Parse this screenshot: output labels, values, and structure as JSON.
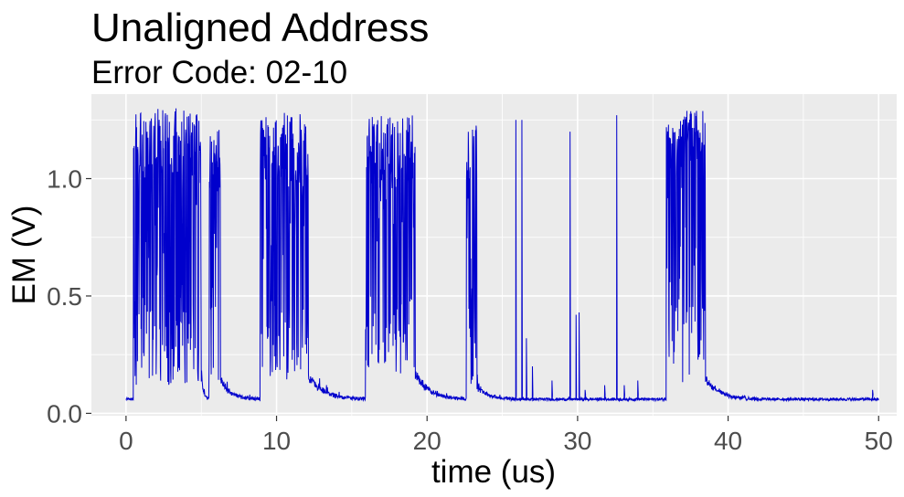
{
  "chart_data": {
    "type": "line",
    "title": "Unaligned Address",
    "subtitle": "Error Code: 02-10",
    "xlabel": "time (us)",
    "ylabel": "EM (V)",
    "xlim": [
      -2.3,
      51.2
    ],
    "ylim": [
      -0.01,
      1.36
    ],
    "x_ticks": [
      0,
      10,
      20,
      30,
      40,
      50
    ],
    "x_tick_labels": [
      "0",
      "10",
      "20",
      "30",
      "40",
      "50"
    ],
    "y_ticks": [
      0.0,
      0.5,
      1.0
    ],
    "y_tick_labels": [
      "0.0",
      "0.5",
      "1.0"
    ],
    "grid": true,
    "legend": "none",
    "colors": {
      "panel": "#ebebeb",
      "grid": "#ffffff",
      "line": "#0000cc"
    },
    "series": [
      {
        "baseline": 0.06,
        "burst_regions": [
          {
            "start": 0.5,
            "end": 5.0,
            "low": 0.12,
            "high": 1.28
          },
          {
            "start": 5.5,
            "end": 6.3,
            "low": 0.14,
            "high": 1.22
          },
          {
            "start": 8.9,
            "end": 12.1,
            "low": 0.14,
            "high": 1.26
          },
          {
            "start": 15.9,
            "end": 19.2,
            "low": 0.16,
            "high": 1.25
          },
          {
            "start": 22.6,
            "end": 23.3,
            "low": 0.12,
            "high": 1.22
          },
          {
            "start": 35.9,
            "end": 38.5,
            "low": 0.12,
            "high": 1.27
          }
        ],
        "decays": [
          {
            "start": 5.0,
            "end": 5.5,
            "level": 0.17
          },
          {
            "start": 6.3,
            "end": 8.9,
            "level": 0.14
          },
          {
            "start": 12.1,
            "end": 15.9,
            "level": 0.16
          },
          {
            "start": 19.2,
            "end": 22.6,
            "level": 0.18
          },
          {
            "start": 23.3,
            "end": 26.0,
            "level": 0.12
          },
          {
            "start": 38.5,
            "end": 42.0,
            "level": 0.15
          }
        ],
        "spikes": [
          {
            "x": 25.9,
            "y": 1.25
          },
          {
            "x": 26.3,
            "y": 1.25
          },
          {
            "x": 26.6,
            "y": 0.32
          },
          {
            "x": 27.0,
            "y": 0.2
          },
          {
            "x": 28.3,
            "y": 0.14
          },
          {
            "x": 29.5,
            "y": 1.2
          },
          {
            "x": 29.9,
            "y": 0.42
          },
          {
            "x": 30.1,
            "y": 0.43
          },
          {
            "x": 30.5,
            "y": 0.1
          },
          {
            "x": 31.8,
            "y": 0.12
          },
          {
            "x": 32.6,
            "y": 1.27
          },
          {
            "x": 33.1,
            "y": 0.12
          },
          {
            "x": 34.0,
            "y": 0.14
          },
          {
            "x": 49.6,
            "y": 0.1
          }
        ]
      }
    ]
  }
}
